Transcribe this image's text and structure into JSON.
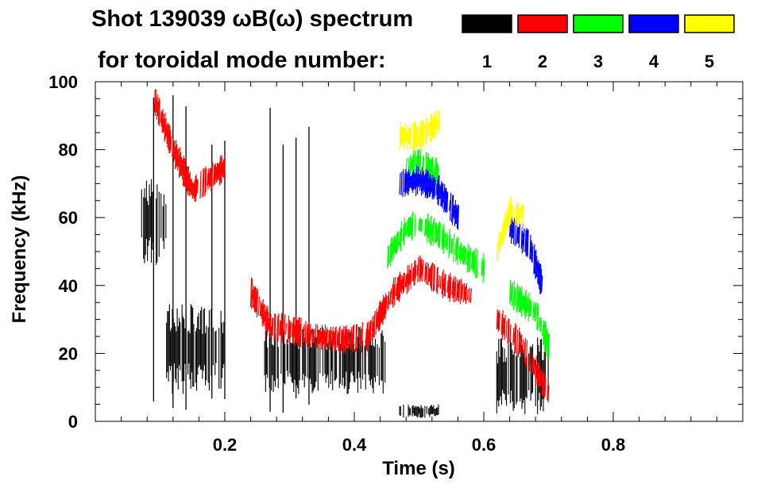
{
  "chart_data": {
    "type": "spectrogram",
    "title_line1": "Shot 139039 ωB(ω) spectrum",
    "title_line2": "for toroidal mode number:",
    "xlabel": "Time (s)",
    "ylabel": "Frequency (kHz)",
    "xlim": [
      0.0,
      1.0
    ],
    "ylim": [
      0,
      100
    ],
    "x_ticks": [
      0.2,
      0.4,
      0.6,
      0.8
    ],
    "x_tick_labels": [
      "0.2",
      "0.4",
      "0.6",
      "0.8"
    ],
    "y_ticks": [
      0,
      20,
      40,
      60,
      80,
      100
    ],
    "y_tick_labels": [
      "0",
      "20",
      "40",
      "60",
      "80",
      "100"
    ],
    "legend": [
      {
        "label": "1",
        "color": "#000000"
      },
      {
        "label": "2",
        "color": "#ff0000"
      },
      {
        "label": "3",
        "color": "#00ff00"
      },
      {
        "label": "4",
        "color": "#0000ff"
      },
      {
        "label": "5",
        "color": "#ffff00"
      }
    ],
    "modes": [
      {
        "n": 1,
        "color": "#000000",
        "regions": [
          {
            "t": [
              0.07,
              0.11
            ],
            "f": [
              45,
              72
            ]
          },
          {
            "t": [
              0.11,
              0.2
            ],
            "f": [
              8,
              35
            ]
          },
          {
            "t": [
              0.26,
              0.45
            ],
            "f": [
              8,
              28
            ]
          },
          {
            "t": [
              0.47,
              0.53
            ],
            "f": [
              1,
              5
            ]
          },
          {
            "t": [
              0.62,
              0.7
            ],
            "f": [
              2,
              25
            ]
          }
        ],
        "bursts": [
          0.09,
          0.12,
          0.14,
          0.18,
          0.2,
          0.27,
          0.29,
          0.31,
          0.33
        ]
      },
      {
        "n": 2,
        "color": "#ff0000",
        "tracks": [
          {
            "t": [
              0.09,
              0.12,
              0.15,
              0.2
            ],
            "f": [
              95,
              80,
              68,
              75
            ]
          },
          {
            "t": [
              0.24,
              0.27,
              0.3,
              0.34,
              0.38,
              0.42,
              0.46,
              0.5,
              0.54,
              0.58
            ],
            "f": [
              38,
              28,
              27,
              25,
              24,
              25,
              38,
              45,
              40,
              37
            ]
          },
          {
            "t": [
              0.62,
              0.66,
              0.7
            ],
            "f": [
              30,
              22,
              8
            ]
          }
        ]
      },
      {
        "n": 3,
        "color": "#00ff00",
        "tracks": [
          {
            "t": [
              0.45,
              0.48,
              0.5,
              0.53,
              0.56,
              0.6
            ],
            "f": [
              48,
              57,
              58,
              55,
              50,
              45
            ]
          },
          {
            "t": [
              0.48,
              0.5,
              0.53
            ],
            "f": [
              75,
              76,
              73
            ]
          },
          {
            "t": [
              0.64,
              0.68,
              0.7
            ],
            "f": [
              38,
              32,
              22
            ]
          }
        ]
      },
      {
        "n": 4,
        "color": "#0000ff",
        "tracks": [
          {
            "t": [
              0.47,
              0.5,
              0.53,
              0.56
            ],
            "f": [
              70,
              71,
              68,
              60
            ]
          },
          {
            "t": [
              0.64,
              0.67,
              0.69
            ],
            "f": [
              57,
              52,
              40
            ]
          }
        ]
      },
      {
        "n": 5,
        "color": "#ffff00",
        "tracks": [
          {
            "t": [
              0.47,
              0.5,
              0.53
            ],
            "f": [
              84,
              84,
              88
            ]
          },
          {
            "t": [
              0.62,
              0.64,
              0.66
            ],
            "f": [
              50,
              62,
              60
            ]
          }
        ]
      }
    ]
  }
}
